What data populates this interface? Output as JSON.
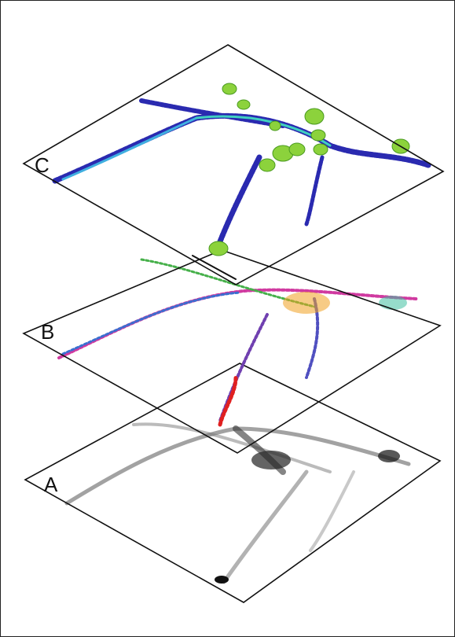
{
  "layers": [
    {
      "label": "C"
    },
    {
      "label": "B"
    },
    {
      "label": "A"
    }
  ]
}
